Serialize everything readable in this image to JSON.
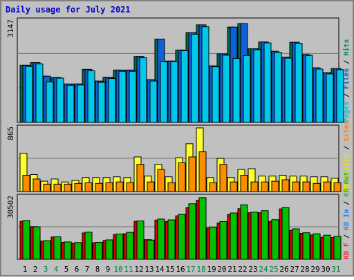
{
  "chart_data": {
    "type": "bar",
    "title": "Daily usage for July 2021",
    "categories": [
      "1",
      "2",
      "3",
      "4",
      "5",
      "6",
      "7",
      "8",
      "9",
      "10",
      "11",
      "12",
      "13",
      "14",
      "15",
      "16",
      "17",
      "18",
      "19",
      "20",
      "21",
      "22",
      "23",
      "24",
      "25",
      "26",
      "27",
      "28",
      "29",
      "30",
      "31"
    ],
    "weekend_days": [
      "3",
      "4",
      "10",
      "11",
      "17",
      "18",
      "24",
      "25",
      "31"
    ],
    "panels": [
      {
        "id": "top",
        "max_label": "3147",
        "ylim": [
          0,
          3147
        ],
        "axis_labels": [
          {
            "text": "Pages",
            "color": "#00c0e0"
          },
          {
            "text": "Files",
            "color": "#0060c0"
          },
          {
            "text": "Hits",
            "color": "#008060"
          }
        ],
        "series": [
          {
            "name": "Hits",
            "color": "#006d50",
            "values": [
              1770,
              1850,
              1430,
              1390,
              1190,
              1190,
              1640,
              1280,
              1400,
              1620,
              1620,
              2040,
              1320,
              2580,
              1900,
              2240,
              2780,
              3020,
              1750,
              2120,
              2950,
              3060,
              2280,
              2490,
              2200,
              2020,
              2480,
              2100,
              1690,
              1540,
              1670
            ]
          },
          {
            "name": "Files",
            "color": "#1060d8",
            "values": [
              1770,
              1850,
              1430,
              1390,
              1190,
              1190,
              1640,
              1280,
              1400,
              1620,
              1620,
              2040,
              1320,
              2580,
              1900,
              2240,
              2780,
              3020,
              1750,
              2120,
              2950,
              3060,
              2280,
              2490,
              2200,
              2020,
              2480,
              2100,
              1690,
              1540,
              1670
            ]
          },
          {
            "name": "Pages",
            "color": "#00c8e8",
            "values": [
              1730,
              1810,
              1250,
              1370,
              1150,
              1160,
              1600,
              1240,
              1360,
              1580,
              1580,
              2000,
              1280,
              1880,
              1880,
              2220,
              2730,
              2960,
              1720,
              2080,
              1980,
              2070,
              2250,
              2460,
              2170,
              1990,
              2450,
              2070,
              1650,
              1500,
              1630
            ]
          }
        ]
      },
      {
        "id": "middle",
        "max_label": "865",
        "ylim": [
          0,
          865
        ],
        "axis_labels": [
          {
            "text": "KB Visits",
            "color": "#f0e000"
          },
          {
            "text": "Sites",
            "color": "#ff8000"
          }
        ],
        "series": [
          {
            "name": "Visits",
            "color": "#ffff30",
            "values": [
              520,
              230,
              140,
              170,
              130,
              150,
              190,
              190,
              190,
              200,
              190,
              470,
              210,
              370,
              200,
              460,
              650,
              865,
              190,
              450,
              190,
              300,
              310,
              210,
              210,
              220,
              210,
              210,
              200,
              200,
              180
            ]
          },
          {
            "name": "Sites",
            "color": "#ff8c00",
            "values": [
              220,
              170,
              100,
              100,
              100,
              110,
              120,
              110,
              120,
              130,
              120,
              370,
              130,
              300,
              120,
              390,
              470,
              540,
              120,
              370,
              130,
              220,
              130,
              130,
              140,
              160,
              130,
              130,
              110,
              130,
              120
            ]
          }
        ]
      },
      {
        "id": "bottom",
        "max_label": "30502",
        "ylim": [
          0,
          30502
        ],
        "axis_labels": [
          {
            "text": "KB F",
            "color": "#ff2020"
          },
          {
            "text": "KB In",
            "color": "#2080ff"
          },
          {
            "text": "KB Out",
            "color": "#20c020"
          }
        ],
        "series": [
          {
            "name": "KB F",
            "color": "#e00000",
            "values": [
              18600,
              16000,
              8900,
              10900,
              8300,
              7900,
              12900,
              8100,
              9200,
              12100,
              12500,
              18600,
              9600,
              19200,
              18500,
              21300,
              25300,
              28900,
              15300,
              17800,
              21900,
              24800,
              22800,
              22800,
              18600,
              24700,
              14200,
              12700,
              11900,
              10800,
              10700
            ]
          },
          {
            "name": "KB Out",
            "color": "#00c000",
            "values": [
              19000,
              15900,
              9100,
              11000,
              8500,
              8200,
              13300,
              8300,
              9500,
              12400,
              13200,
              18800,
              9400,
              19700,
              19300,
              22000,
              27200,
              30200,
              15700,
              18500,
              22700,
              26700,
              23100,
              23800,
              19400,
              25300,
              14900,
              13000,
              12500,
              11800,
              11200
            ]
          }
        ]
      }
    ]
  }
}
